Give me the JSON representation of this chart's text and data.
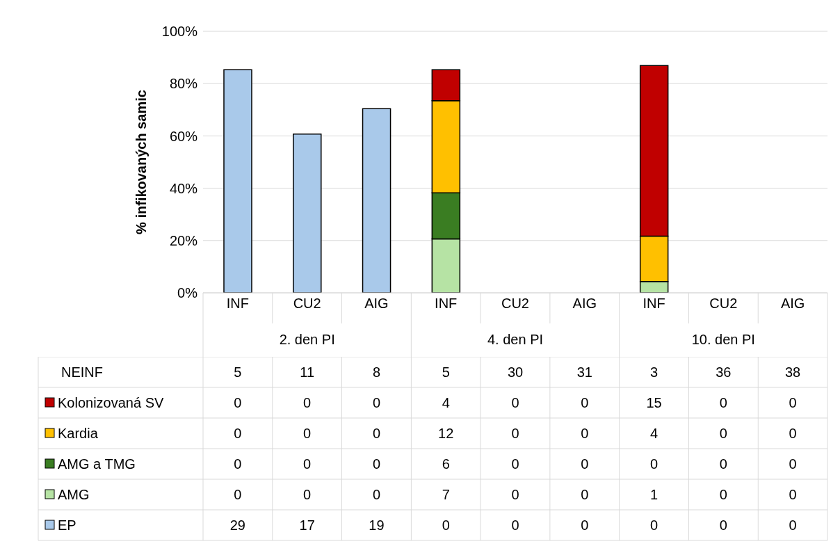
{
  "chart_data": [
    {
      "type": "bar",
      "ylabel": "% infikovaných samic",
      "stacked": true,
      "grid": "y",
      "categories": [
        "INF",
        "CU2",
        "AIG",
        "INF",
        "CU2",
        "AIG",
        "INF",
        "CU2",
        "AIG"
      ],
      "series": [
        {
          "color": "#a9c9ea",
          "values": [
            85.3,
            60.7,
            70.4,
            0,
            0,
            0,
            0,
            0,
            0
          ]
        },
        {
          "color": "#b6e3a4",
          "values": [
            0,
            0,
            0,
            20.6,
            0,
            0,
            4.3,
            0,
            0
          ]
        },
        {
          "color": "#3a7d22",
          "values": [
            0,
            0,
            0,
            17.6,
            0,
            0,
            0,
            0,
            0
          ]
        },
        {
          "color": "#ffc000",
          "values": [
            0,
            0,
            0,
            35.3,
            0,
            0,
            17.4,
            0,
            0
          ]
        },
        {
          "color": "#c00000",
          "values": [
            0,
            0,
            0,
            11.8,
            0,
            0,
            65.2,
            0,
            0
          ]
        }
      ],
      "annotations": [
        "2. den PI",
        "4. den PI",
        "10. den PI"
      ],
      "ylim": [
        0,
        100
      ],
      "yticks": [
        {
          "value": 0,
          "label": "0%"
        },
        {
          "value": 20,
          "label": "20%"
        },
        {
          "value": 40,
          "label": "40%"
        },
        {
          "value": 60,
          "label": "60%"
        },
        {
          "value": 80,
          "label": "80%"
        },
        {
          "value": 100,
          "label": "100%"
        }
      ]
    },
    {
      "type": "heatmap",
      "data_labels": true,
      "categories": [
        null,
        null,
        null,
        null,
        null,
        null,
        null,
        null,
        null
      ],
      "y_categories": [
        "NEINF",
        "Kolonizovaná SV",
        "Kardia",
        "AMG a TMG",
        "AMG",
        "EP"
      ],
      "cells": [
        [
          5,
          11,
          8,
          5,
          30,
          31,
          3,
          36,
          38
        ],
        [
          0,
          0,
          0,
          4,
          0,
          0,
          15,
          0,
          0
        ],
        [
          0,
          0,
          0,
          12,
          0,
          0,
          4,
          0,
          0
        ],
        [
          0,
          0,
          0,
          6,
          0,
          0,
          0,
          0,
          0
        ],
        [
          0,
          0,
          0,
          7,
          0,
          0,
          1,
          0,
          0
        ],
        [
          29,
          17,
          19,
          0,
          0,
          0,
          0,
          0,
          0
        ]
      ]
    }
  ]
}
